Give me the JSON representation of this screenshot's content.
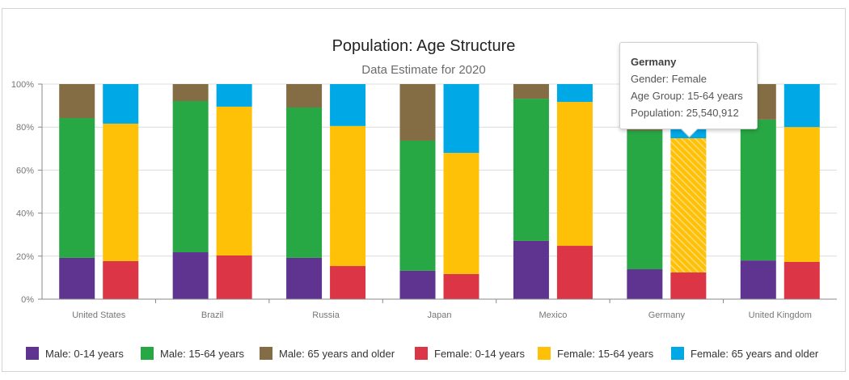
{
  "chart_data": {
    "type": "bar",
    "stacked": "percent",
    "title": "Population: Age Structure",
    "subtitle": "Data Estimate for 2020",
    "categories": [
      "United States",
      "Brazil",
      "Russia",
      "Japan",
      "Mexico",
      "Germany",
      "United Kingdom"
    ],
    "ylim": [
      0,
      100
    ],
    "yticks": [
      "0%",
      "20%",
      "40%",
      "60%",
      "80%",
      "100%"
    ],
    "grid": true,
    "legend_position": "bottom",
    "stacks": [
      "Male",
      "Female"
    ],
    "series": [
      {
        "name": "Male: 0-14 years",
        "stack": "Male",
        "color": "#5f3490",
        "values": [
          19.2,
          21.8,
          19.2,
          13.2,
          27.1,
          13.9,
          18.0
        ]
      },
      {
        "name": "Male: 15-64 years",
        "stack": "Male",
        "color": "#28a745",
        "values": [
          65.0,
          70.3,
          69.9,
          60.5,
          66.1,
          64.5,
          65.5
        ]
      },
      {
        "name": "Male: 65 years and older",
        "stack": "Male",
        "color": "#846d45",
        "values": [
          15.8,
          7.9,
          10.9,
          26.3,
          6.8,
          21.6,
          16.5
        ]
      },
      {
        "name": "Female: 0-14 years",
        "stack": "Female",
        "color": "#dc3545",
        "values": [
          17.7,
          20.3,
          15.4,
          11.7,
          24.8,
          12.4,
          17.3
        ]
      },
      {
        "name": "Female: 15-64 years",
        "stack": "Female",
        "color": "#ffc107",
        "values": [
          63.9,
          69.2,
          65.1,
          56.3,
          66.9,
          62.4,
          62.7
        ]
      },
      {
        "name": "Female: 65 years and older",
        "stack": "Female",
        "color": "#00a8e6",
        "values": [
          18.4,
          10.5,
          19.5,
          32.0,
          8.3,
          25.2,
          20.0
        ]
      }
    ]
  },
  "tooltip": {
    "title": "Germany",
    "gender": "Gender: Female",
    "age_group": "Age Group: 15-64 years",
    "population": "Population: 25,540,912",
    "hovered_category": "Germany",
    "hovered_series": "Female: 15-64 years"
  }
}
